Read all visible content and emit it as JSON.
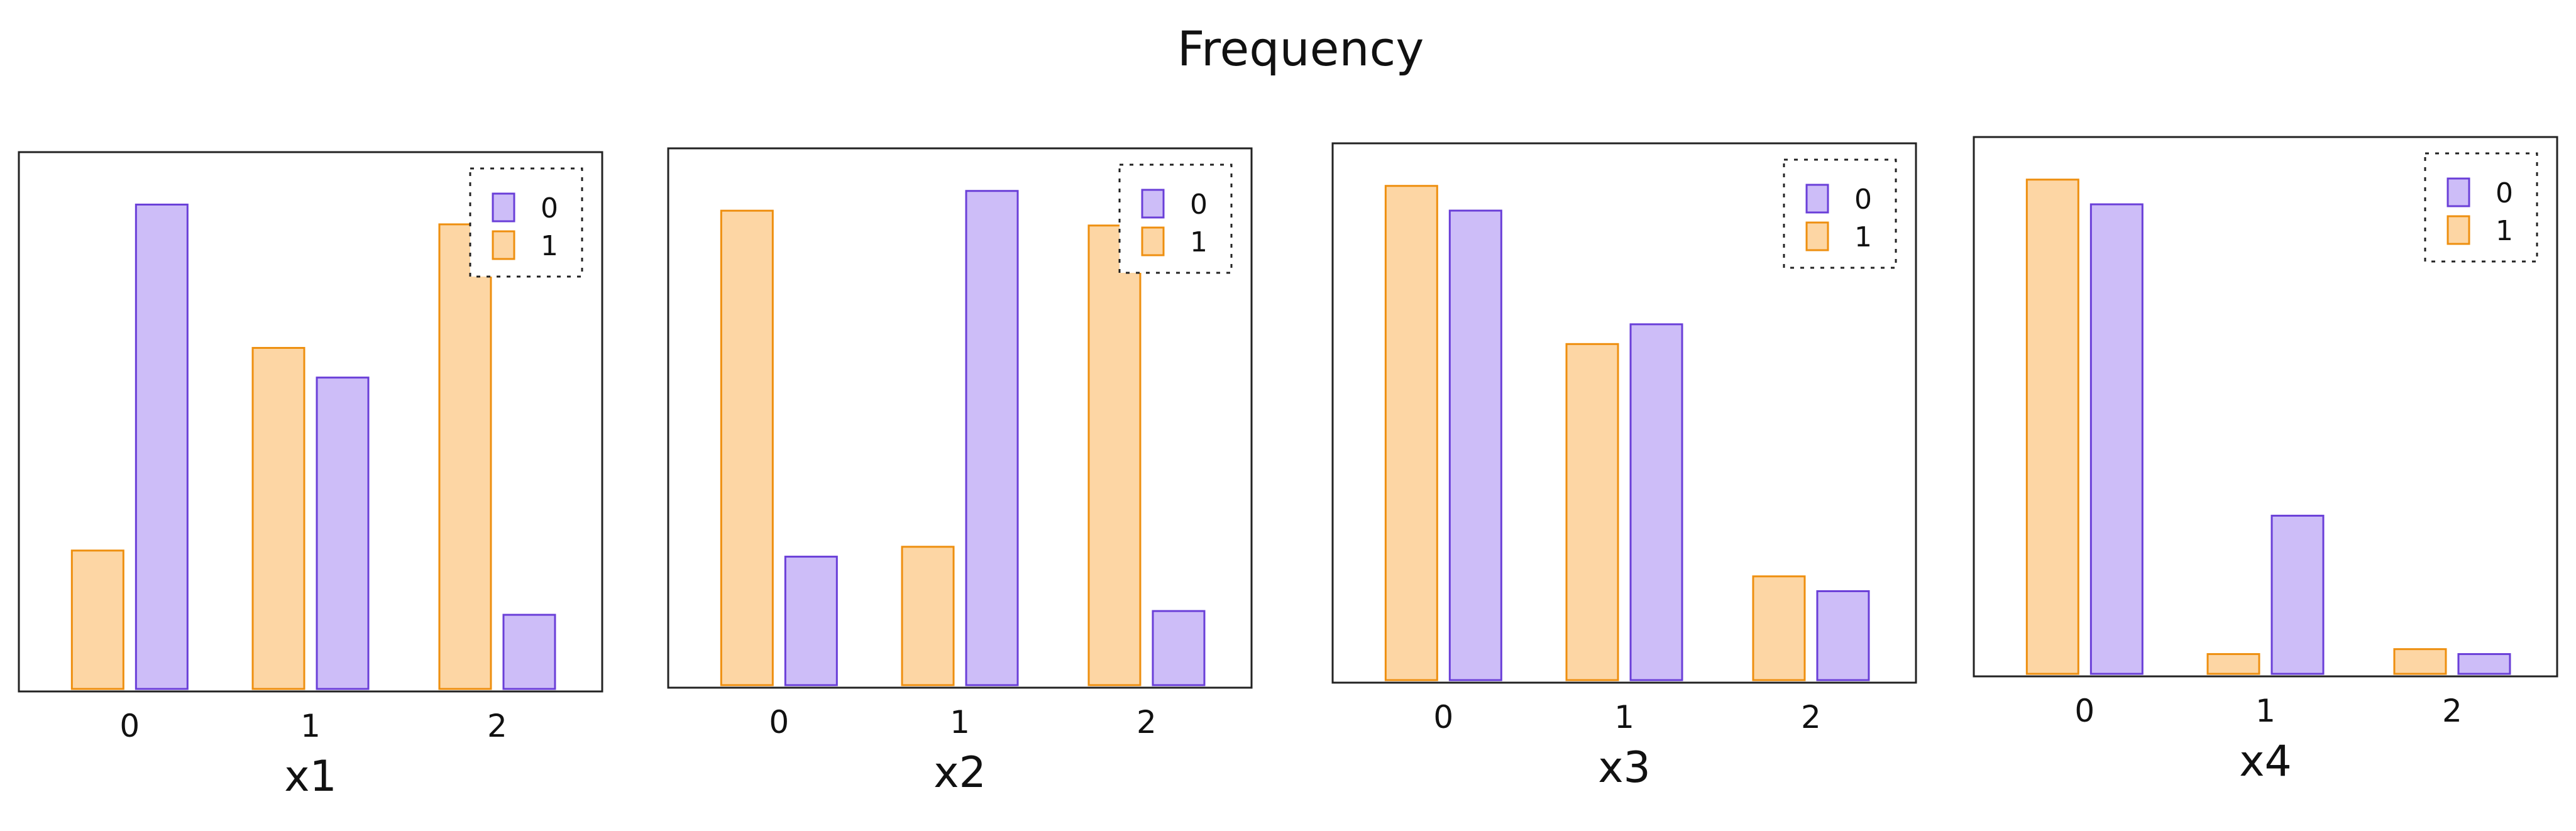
{
  "chart_data": {
    "title": "Frequency",
    "type": "bar",
    "colors": {
      "0": {
        "fill": "#cdbdf8",
        "stroke": "#6a3fd8"
      },
      "1": {
        "fill": "#fdd6a4",
        "stroke": "#ee8f0f"
      }
    },
    "legend": {
      "placement": "top-right",
      "style": "dotted-box",
      "entries": [
        "0",
        "1"
      ]
    },
    "ylim": [
      0,
      1.02
    ],
    "panels": [
      {
        "xlabel": "x1",
        "categories": [
          "0",
          "1",
          "2"
        ],
        "series": [
          {
            "name": "1",
            "values": [
              0.28,
              0.69,
              0.94
            ]
          },
          {
            "name": "0",
            "values": [
              0.98,
              0.63,
              0.15
            ]
          }
        ]
      },
      {
        "xlabel": "x2",
        "categories": [
          "0",
          "1",
          "2"
        ],
        "series": [
          {
            "name": "1",
            "values": [
              0.96,
              0.28,
              0.93
            ]
          },
          {
            "name": "0",
            "values": [
              0.26,
              1.0,
              0.15
            ]
          }
        ]
      },
      {
        "xlabel": "x3",
        "categories": [
          "0",
          "1",
          "2"
        ],
        "series": [
          {
            "name": "1",
            "values": [
              1.0,
              0.68,
              0.21
            ]
          },
          {
            "name": "0",
            "values": [
              0.95,
              0.72,
              0.18
            ]
          }
        ]
      },
      {
        "xlabel": "x4",
        "categories": [
          "0",
          "1",
          "2"
        ],
        "series": [
          {
            "name": "1",
            "values": [
              1.0,
              0.04,
              0.05
            ]
          },
          {
            "name": "0",
            "values": [
              0.95,
              0.32,
              0.04
            ]
          }
        ]
      }
    ]
  }
}
